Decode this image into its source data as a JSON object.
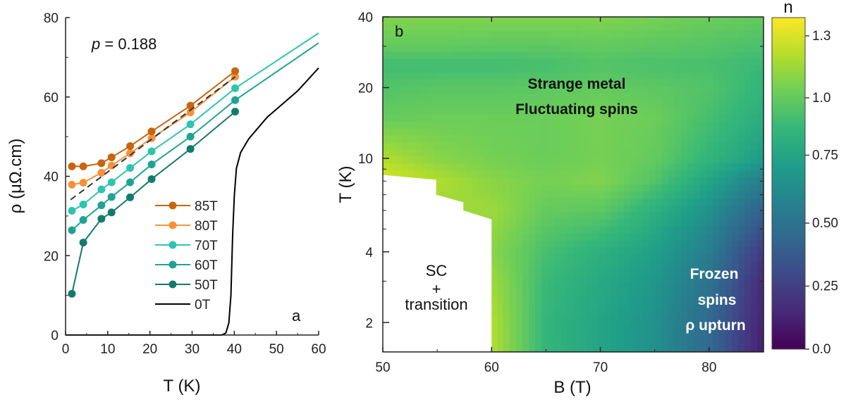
{
  "chart_data": [
    {
      "type": "line",
      "panel_label": "a",
      "annotation": "p = 0.188",
      "annotation_italic": "p",
      "annotation_rest": " = 0.188",
      "xlabel": "T (K)",
      "ylabel": "ρ (μΩ.cm)",
      "xlim": [
        0,
        60
      ],
      "ylim": [
        0,
        80
      ],
      "xticks": [
        "0",
        "10",
        "20",
        "30",
        "40",
        "50",
        "60"
      ],
      "yticks": [
        "0",
        "20",
        "40",
        "60",
        "80"
      ],
      "legend_position": "lower-center",
      "series": [
        {
          "name": "85T",
          "color": "#c8650f",
          "markers": true,
          "x": [
            1.5,
            4.2,
            8.5,
            10.9,
            15.3,
            20.4,
            29.6,
            40.2
          ],
          "y": [
            42.5,
            42.5,
            43.3,
            44.8,
            47.6,
            51.3,
            57.8,
            66.5
          ]
        },
        {
          "name": "80T",
          "color": "#f7923a",
          "markers": true,
          "x": [
            1.5,
            4.2,
            8.5,
            10.9,
            15.3,
            20.4,
            29.6,
            40.2
          ],
          "y": [
            37.9,
            38.4,
            40.9,
            42.7,
            45.8,
            49.6,
            56.1,
            65.1
          ]
        },
        {
          "name": "70T",
          "color": "#2ec4b0",
          "markers": true,
          "x": [
            1.5,
            4.2,
            8.5,
            10.9,
            15.3,
            20.4,
            29.6,
            40.2,
            60
          ],
          "y": [
            31.3,
            32.9,
            36.7,
            38.5,
            42.1,
            46.3,
            53.1,
            62.2,
            76.1
          ],
          "marker_count": 8
        },
        {
          "name": "60T",
          "color": "#1fa396",
          "markers": true,
          "x": [
            1.5,
            4.2,
            8.5,
            10.9,
            15.3,
            20.4,
            29.6,
            40.2,
            60
          ],
          "y": [
            26.4,
            29.0,
            32.7,
            34.8,
            38.5,
            43.0,
            50.0,
            59.2,
            73.6
          ],
          "marker_count": 8
        },
        {
          "name": "50T",
          "color": "#137a6e",
          "markers": true,
          "x": [
            1.5,
            4.2,
            8.5,
            10.9,
            15.3,
            20.4,
            29.6,
            40.2
          ],
          "y": [
            10.4,
            23.3,
            29.3,
            30.9,
            34.7,
            39.3,
            46.9,
            56.3
          ]
        },
        {
          "name": "0T",
          "color": "#000000",
          "markers": false,
          "x": [
            0,
            37,
            38,
            38.7,
            39.2,
            39.6,
            40,
            40.5,
            41.5,
            43.4,
            47.8,
            55,
            60
          ],
          "y": [
            0,
            0,
            0.5,
            3,
            10,
            25,
            35,
            42,
            46,
            49.4,
            54.9,
            61.5,
            67.3
          ]
        }
      ],
      "dashed_fit": {
        "color": "#333333",
        "x": [
          1.2,
          40.2
        ],
        "y": [
          34.1,
          65.1
        ]
      }
    },
    {
      "type": "heatmap",
      "panel_label": "b",
      "xlabel": "B (T)",
      "ylabel": "T (K)",
      "xlim": [
        50,
        85
      ],
      "ylim": [
        1.5,
        40
      ],
      "yscale": "log",
      "xticks": [
        "50",
        "60",
        "70",
        "80"
      ],
      "yticks": [
        "2",
        "4",
        "10",
        "20",
        "40"
      ],
      "colorbar": {
        "title": "n",
        "range": [
          0,
          1.35
        ],
        "ticks": [
          "0.0",
          "0.25",
          "0.50",
          "0.75",
          "1.0",
          "1.3"
        ],
        "colormap": "viridis",
        "stops": [
          "#440154",
          "#482878",
          "#3e4989",
          "#31688e",
          "#26828e",
          "#1f9e89",
          "#35b779",
          "#6ece58",
          "#b5de2b",
          "#fde725"
        ]
      },
      "B": [
        50,
        55,
        60,
        65,
        70,
        75,
        80,
        85
      ],
      "T": [
        1.5,
        2,
        3,
        4,
        6,
        8,
        10,
        15,
        20,
        25,
        30,
        40
      ],
      "n": [
        [
          null,
          null,
          1.2,
          0.85,
          0.75,
          0.65,
          0.45,
          0.1
        ],
        [
          null,
          null,
          1.2,
          0.85,
          0.75,
          0.65,
          0.45,
          0.12
        ],
        [
          null,
          null,
          1.15,
          0.88,
          0.78,
          0.68,
          0.5,
          0.15
        ],
        [
          null,
          null,
          1.1,
          0.92,
          0.82,
          0.72,
          0.55,
          0.22
        ],
        [
          null,
          null,
          1.15,
          1.0,
          0.98,
          0.82,
          0.65,
          0.4
        ],
        [
          1.3,
          1.2,
          1.1,
          1.05,
          1.08,
          0.95,
          0.75,
          0.55
        ],
        [
          1.2,
          1.1,
          1.05,
          1.02,
          1.05,
          1.0,
          0.85,
          0.7
        ],
        [
          1.0,
          1.02,
          1.02,
          1.02,
          1.05,
          1.02,
          0.92,
          0.8
        ],
        [
          0.95,
          0.97,
          0.97,
          0.98,
          1.0,
          0.98,
          0.95,
          0.85
        ],
        [
          0.9,
          0.9,
          0.9,
          0.92,
          0.95,
          0.93,
          0.92,
          0.88
        ],
        [
          1.0,
          1.0,
          0.98,
          0.98,
          1.0,
          0.98,
          0.96,
          0.93
        ],
        [
          1.08,
          1.08,
          1.08,
          1.08,
          1.08,
          1.05,
          1.02,
          1.0
        ]
      ],
      "sc_boundary": {
        "B": [
          50,
          54.9,
          54.9,
          57.4,
          57.4,
          60,
          60,
          50
        ],
        "T": [
          8.5,
          8.1,
          7.0,
          6.5,
          6.0,
          5.5,
          1.5,
          1.5
        ]
      },
      "regions": {
        "strange_metal": [
          "Strange metal",
          "Fluctuating spins"
        ],
        "sc": [
          "SC",
          "+",
          "transition"
        ],
        "frozen": [
          "Frozen",
          "spins",
          "ρ upturn"
        ]
      }
    }
  ]
}
